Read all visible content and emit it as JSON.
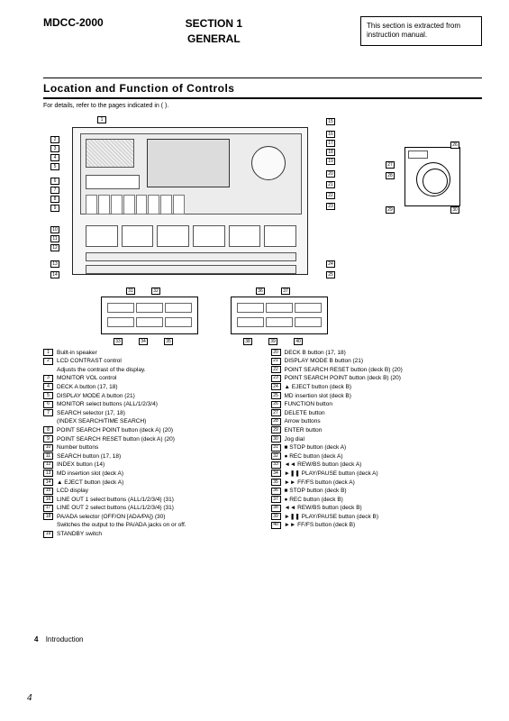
{
  "header": {
    "model": "MDCC-2000",
    "section_line1": "SECTION 1",
    "section_line2": "GENERAL",
    "note": "This section is extracted from instruction manual."
  },
  "main": {
    "title": "Location and Function of Controls",
    "subtitle": "For details, refer to the pages indicated in ( )."
  },
  "callouts_left": [
    "1",
    "2",
    "3",
    "4",
    "5",
    "6",
    "7",
    "8",
    "9",
    "10",
    "11",
    "12",
    "13",
    "14"
  ],
  "callouts_right_top": [
    "15",
    "16",
    "17",
    "18",
    "19"
  ],
  "callouts_right_mid": [
    "20",
    "21",
    "22",
    "23",
    "24",
    "25"
  ],
  "callouts_remote": [
    "26",
    "27",
    "28",
    "29",
    "30"
  ],
  "callouts_sub_a_top": [
    "31",
    "32"
  ],
  "callouts_sub_a_bot": [
    "33",
    "34",
    "35"
  ],
  "callouts_sub_b_top": [
    "36",
    "37"
  ],
  "callouts_sub_b_bot": [
    "38",
    "39",
    "40"
  ],
  "legend_left": [
    {
      "n": "1",
      "t": "Built-in speaker"
    },
    {
      "n": "2",
      "t": "LCD CONTRAST control",
      "s": "Adjusts the contrast of the display."
    },
    {
      "n": "3",
      "t": "MONITOR VOL control"
    },
    {
      "n": "4",
      "t": "DECK A button (17, 18)"
    },
    {
      "n": "5",
      "t": "DISPLAY MODE A button (21)"
    },
    {
      "n": "6",
      "t": "MONITOR select buttons (ALL/1/2/3/4)"
    },
    {
      "n": "7",
      "t": "SEARCH selector (17, 18)",
      "s": "(INDEX SEARCH/TIME SEARCH)"
    },
    {
      "n": "8",
      "t": "POINT SEARCH POINT button (deck A) (20)"
    },
    {
      "n": "9",
      "t": "POINT SEARCH RESET button (deck A) (20)"
    },
    {
      "n": "10",
      "t": "Number buttons"
    },
    {
      "n": "11",
      "t": "SEARCH button (17, 18)"
    },
    {
      "n": "12",
      "t": "INDEX button (14)"
    },
    {
      "n": "13",
      "t": "MD insertion slot (deck A)"
    },
    {
      "n": "14",
      "t": "▲ EJECT button (deck A)"
    },
    {
      "n": "15",
      "t": "LCD display"
    },
    {
      "n": "16",
      "t": "LINE OUT 1 select buttons (ALL/1/2/3/4) (31)"
    },
    {
      "n": "17",
      "t": "LINE OUT 2 select buttons (ALL/1/2/3/4) (31)"
    },
    {
      "n": "18",
      "t": "PA/ADA selector (OFF/ON [ADA/PA]) (30)",
      "s": "Switches the output to the PA/ADA jacks on or off."
    },
    {
      "n": "19",
      "t": "STANDBY switch"
    }
  ],
  "legend_right": [
    {
      "n": "20",
      "t": "DECK B button (17, 18)"
    },
    {
      "n": "21",
      "t": "DISPLAY MODE B button (21)"
    },
    {
      "n": "22",
      "t": "POINT SEARCH RESET button (deck B) (20)"
    },
    {
      "n": "23",
      "t": "POINT SEARCH POINT button (deck B) (20)"
    },
    {
      "n": "24",
      "t": "▲ EJECT button (deck B)"
    },
    {
      "n": "25",
      "t": "MD insertion slot (deck B)"
    },
    {
      "n": "26",
      "t": "FUNCTION button"
    },
    {
      "n": "27",
      "t": "DELETE button"
    },
    {
      "n": "28",
      "t": "Arrow buttons"
    },
    {
      "n": "29",
      "t": "ENTER button"
    },
    {
      "n": "30",
      "t": "Jog dial"
    },
    {
      "n": "31",
      "t": "■ STOP button (deck A)"
    },
    {
      "n": "32",
      "t": "● REC button (deck A)"
    },
    {
      "n": "33",
      "t": "◄◄ REW/BS button (deck A)"
    },
    {
      "n": "34",
      "t": "►❚❚ PLAY/PAUSE button (deck A)"
    },
    {
      "n": "35",
      "t": "►► FF/FS button (deck A)"
    },
    {
      "n": "36",
      "t": "■ STOP button (deck B)"
    },
    {
      "n": "37",
      "t": "● REC button (deck B)"
    },
    {
      "n": "38",
      "t": "◄◄ REW/BS button (deck B)"
    },
    {
      "n": "39",
      "t": "►❚❚ PLAY/PAUSE button (deck B)"
    },
    {
      "n": "40",
      "t": "►► FF/FS button (deck B)"
    }
  ],
  "footer": {
    "page_ref_num": "4",
    "page_ref_label": "Introduction",
    "page_number": "4"
  },
  "style": {
    "page_bg": "#ffffff",
    "text_color": "#000000",
    "rule_color": "#000000",
    "figure_fill": "#f6f6f6"
  }
}
